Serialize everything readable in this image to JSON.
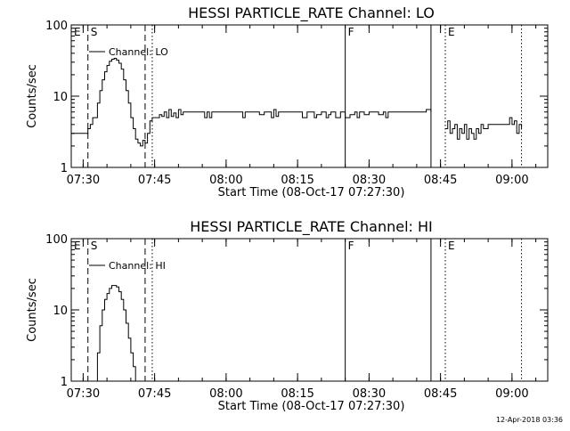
{
  "chart_data": [
    {
      "type": "line",
      "title": "HESSI PARTICLE_RATE Channel: LO",
      "xlabel": "Start Time (08-Oct-17 07:27:30)",
      "ylabel": "Counts/sec",
      "yscale": "log",
      "ylim": [
        1,
        100
      ],
      "xlim": [
        "07:27:30",
        "09:07:30"
      ],
      "x_ticks": [
        "07:30",
        "07:45",
        "08:00",
        "08:15",
        "08:30",
        "08:45",
        "09:00"
      ],
      "y_ticks": [
        "1",
        "10",
        "100"
      ],
      "legend": "Channel: LO",
      "markers": [
        {
          "label": "E",
          "time": "07:27:30",
          "style": "solid"
        },
        {
          "label": "S",
          "time": "07:31:00",
          "style": "dashed"
        },
        {
          "label": "",
          "time": "07:43:00",
          "style": "dashed"
        },
        {
          "label": "",
          "time": "07:44:30",
          "style": "dotted"
        },
        {
          "label": "F",
          "time": "08:25:00",
          "style": "solid"
        },
        {
          "label": "",
          "time": "08:43:00",
          "style": "solid"
        },
        {
          "label": "E",
          "time": "08:46:00",
          "style": "dotted"
        },
        {
          "label": "",
          "time": "09:02:00",
          "style": "dotted"
        }
      ],
      "series": [
        {
          "name": "Channel: LO",
          "segments": [
            {
              "x": [
                "07:27:30",
                "07:28:30",
                "07:29:30",
                "07:30:30",
                "07:31:00",
                "07:31:30",
                "07:32:00",
                "07:33:00",
                "07:33:30",
                "07:34:00",
                "07:34:30",
                "07:35:00",
                "07:35:30",
                "07:36:00",
                "07:36:30",
                "07:37:00",
                "07:37:30",
                "07:38:00",
                "07:38:30",
                "07:39:00",
                "07:39:30",
                "07:40:00",
                "07:40:30",
                "07:41:00",
                "07:41:30",
                "07:42:00",
                "07:42:30",
                "07:43:00",
                "07:43:30",
                "07:44:00",
                "07:44:30",
                "07:45:00"
              ],
              "y": [
                3,
                3,
                3,
                3,
                3.5,
                4,
                5,
                8,
                12,
                17,
                22,
                27,
                31,
                33,
                34,
                32,
                29,
                24,
                17,
                12,
                8,
                5,
                3.5,
                2.5,
                2.2,
                2,
                2.4,
                2.2,
                3,
                4.5,
                5,
                5
              ]
            },
            {
              "x": [
                "07:45:00",
                "07:46:00",
                "07:46:30",
                "07:47:00",
                "07:47:30",
                "07:48:00",
                "07:48:30",
                "07:49:00",
                "07:49:30",
                "07:50:00",
                "07:50:30",
                "07:51:00",
                "07:52:00",
                "07:53:00",
                "07:54:00",
                "07:55:00",
                "07:55:30",
                "07:56:00",
                "07:56:30",
                "07:57:00",
                "07:58:00",
                "07:59:00",
                "08:00:00",
                "08:01:00",
                "08:02:00",
                "08:03:00",
                "08:03:30",
                "08:04:00",
                "08:05:00",
                "08:06:00",
                "08:07:00",
                "08:08:00",
                "08:09:00",
                "08:09:30",
                "08:10:00",
                "08:10:30",
                "08:11:00",
                "08:12:00",
                "08:13:00",
                "08:14:00",
                "08:15:00",
                "08:16:00",
                "08:17:00",
                "08:18:00",
                "08:18:30",
                "08:19:00",
                "08:20:00",
                "08:21:00",
                "08:21:30",
                "08:22:00",
                "08:23:00",
                "08:24:00",
                "08:25:00",
                "08:26:00",
                "08:27:00",
                "08:27:30",
                "08:28:00",
                "08:29:00",
                "08:30:00",
                "08:31:00",
                "08:32:00",
                "08:33:00",
                "08:33:30",
                "08:34:00",
                "08:35:00",
                "08:36:00",
                "08:37:00",
                "08:38:00",
                "08:39:00",
                "08:40:00",
                "08:41:00",
                "08:42:00",
                "08:43:00"
              ],
              "y": [
                5,
                5.5,
                5.2,
                6,
                5,
                6.5,
                5.2,
                5.8,
                5,
                6.5,
                5.5,
                6,
                6,
                6,
                6,
                6,
                5,
                6,
                5,
                6,
                6,
                6,
                6,
                6,
                6,
                6,
                5,
                6,
                6,
                6,
                5.5,
                6,
                6,
                5,
                6.5,
                5.2,
                6,
                6,
                6,
                6,
                6,
                5,
                6,
                6,
                5,
                5.5,
                6,
                5,
                5.5,
                6,
                5,
                6,
                5,
                5.5,
                6,
                5,
                6,
                5.5,
                6,
                6,
                5.5,
                6,
                5,
                6,
                6,
                6,
                6,
                6,
                6,
                6,
                6,
                6.5,
                6
              ]
            },
            {
              "x": [
                "08:46:00",
                "08:46:30",
                "08:47:00",
                "08:47:30",
                "08:48:00",
                "08:48:30",
                "08:49:00",
                "08:49:30",
                "08:50:00",
                "08:50:30",
                "08:51:00",
                "08:51:30",
                "08:52:00",
                "08:52:30",
                "08:53:00",
                "08:53:30",
                "08:54:00",
                "08:55:00",
                "08:56:00",
                "08:57:00",
                "08:58:00",
                "08:59:00",
                "08:59:30",
                "09:00:00",
                "09:00:30",
                "09:01:00",
                "09:01:30",
                "09:02:00"
              ],
              "y": [
                3.5,
                4.5,
                3,
                3.5,
                4,
                2.5,
                3.5,
                3,
                4,
                2.5,
                3.5,
                3,
                2.5,
                3.5,
                3,
                4,
                3.5,
                4,
                4,
                4,
                4,
                4,
                5,
                4,
                4.5,
                3,
                4,
                3.5
              ]
            }
          ]
        }
      ]
    },
    {
      "type": "line",
      "title": "HESSI PARTICLE_RATE Channel: HI",
      "xlabel": "Start Time (08-Oct-17 07:27:30)",
      "ylabel": "Counts/sec",
      "yscale": "log",
      "ylim": [
        1,
        100
      ],
      "xlim": [
        "07:27:30",
        "09:07:30"
      ],
      "x_ticks": [
        "07:30",
        "07:45",
        "08:00",
        "08:15",
        "08:30",
        "08:45",
        "09:00"
      ],
      "y_ticks": [
        "1",
        "10",
        "100"
      ],
      "legend": "Channel: HI",
      "markers": [
        {
          "label": "E",
          "time": "07:27:30",
          "style": "solid"
        },
        {
          "label": "S",
          "time": "07:31:00",
          "style": "dashed"
        },
        {
          "label": "",
          "time": "07:43:00",
          "style": "dashed"
        },
        {
          "label": "",
          "time": "07:44:30",
          "style": "dotted"
        },
        {
          "label": "F",
          "time": "08:25:00",
          "style": "solid"
        },
        {
          "label": "",
          "time": "08:43:00",
          "style": "solid"
        },
        {
          "label": "E",
          "time": "08:46:00",
          "style": "dotted"
        },
        {
          "label": "",
          "time": "09:02:00",
          "style": "dotted"
        }
      ],
      "series": [
        {
          "name": "Channel: HI",
          "segments": [
            {
              "x": [
                "07:32:30",
                "07:33:00",
                "07:33:30",
                "07:34:00",
                "07:34:30",
                "07:35:00",
                "07:35:30",
                "07:36:00",
                "07:36:30",
                "07:37:00",
                "07:37:30",
                "07:38:00",
                "07:38:30",
                "07:39:00",
                "07:39:30",
                "07:40:00",
                "07:40:30",
                "07:41:00"
              ],
              "y": [
                1,
                2.5,
                6,
                10,
                14,
                17,
                20,
                22,
                22,
                21,
                18,
                14,
                10,
                6.5,
                4,
                2.5,
                1.6,
                1
              ]
            }
          ]
        }
      ]
    }
  ],
  "footer": {
    "timestamp": "12-Apr-2018 03:36"
  }
}
